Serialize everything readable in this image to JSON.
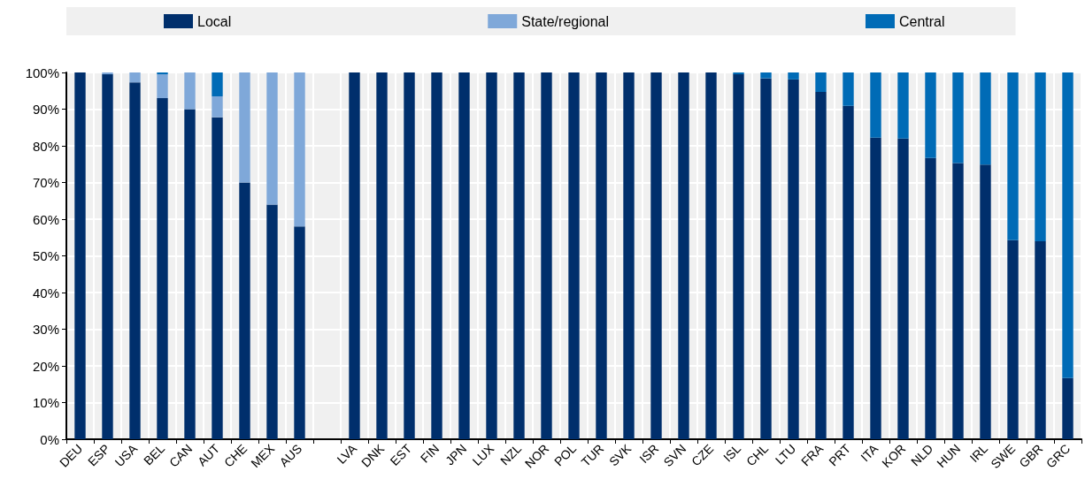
{
  "chart_data": {
    "type": "bar",
    "stacked": true,
    "grid": true,
    "legend": "top",
    "categories": [
      "DEU",
      "ESP",
      "USA",
      "BEL",
      "CAN",
      "AUT",
      "CHE",
      "MEX",
      "AUS",
      null,
      "LVA",
      "DNK",
      "EST",
      "FIN",
      "JPN",
      "LUX",
      "NZL",
      "NOR",
      "POL",
      "TUR",
      "SVK",
      "ISR",
      "SVN",
      "CZE",
      "ISL",
      "CHL",
      "LTU",
      "FRA",
      "PRT",
      "ITA",
      "KOR",
      "NLD",
      "HUN",
      "IRL",
      "SWE",
      "GBR",
      "GRC"
    ],
    "series": [
      {
        "name": "Local",
        "color": "#002f6c",
        "values": [
          100,
          99.5,
          97.3,
          93,
          90,
          87.8,
          70,
          64,
          58,
          null,
          100,
          100,
          100,
          100,
          100,
          100,
          100,
          100,
          100,
          100,
          100,
          100,
          100,
          100,
          99.5,
          98.4,
          98.1,
          94.7,
          90.9,
          82.2,
          82.0,
          76.7,
          75.3,
          74.9,
          54.3,
          54.0,
          16.7
        ]
      },
      {
        "name": "State/regional",
        "color": "#7fa8d9",
        "values": [
          0,
          0.5,
          2.7,
          6.5,
          10,
          5.7,
          30,
          36,
          42,
          null,
          0,
          0,
          0,
          0,
          0,
          0,
          0,
          0,
          0,
          0,
          0,
          0,
          0,
          0,
          0,
          0,
          0,
          0,
          0,
          0,
          0,
          0,
          0,
          0,
          0,
          0,
          0
        ]
      },
      {
        "name": "Central",
        "color": "#006bb6",
        "values": [
          0,
          0,
          0,
          0.5,
          0,
          6.5,
          0,
          0,
          0,
          null,
          0,
          0,
          0,
          0,
          0,
          0,
          0,
          0,
          0,
          0,
          0,
          0,
          0,
          0,
          0.5,
          1.6,
          1.9,
          5.3,
          9.1,
          17.8,
          18.0,
          23.3,
          24.7,
          25.1,
          45.7,
          46.0,
          83.3
        ]
      }
    ],
    "ylim": [
      0,
      100
    ],
    "yticks": [
      {
        "value": 0,
        "label": "0%"
      },
      {
        "value": 10,
        "label": "10%"
      },
      {
        "value": 20,
        "label": "20%"
      },
      {
        "value": 30,
        "label": "30%"
      },
      {
        "value": 40,
        "label": "40%"
      },
      {
        "value": 50,
        "label": "50%"
      },
      {
        "value": 60,
        "label": "60%"
      },
      {
        "value": 70,
        "label": "70%"
      },
      {
        "value": 80,
        "label": "80%"
      },
      {
        "value": 90,
        "label": "90%"
      },
      {
        "value": 100,
        "label": "100%"
      }
    ]
  }
}
